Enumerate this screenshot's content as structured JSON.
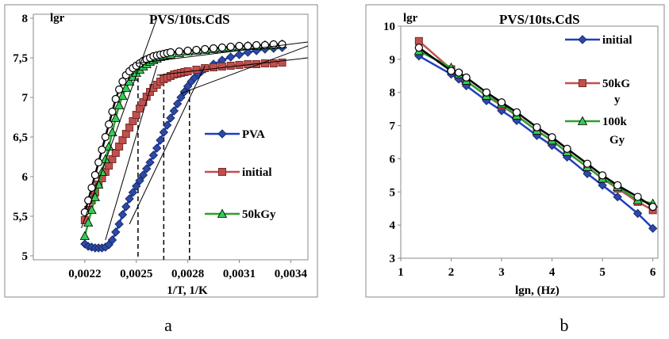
{
  "panels": [
    {
      "caption": "a",
      "chart_data": {
        "type": "line",
        "title": "PVS/10ts.CdS",
        "xlabel": "1/T, 1/K",
        "ylabel": "lgr",
        "xlim": [
          0.0019,
          0.0035
        ],
        "ylim": [
          4.95,
          8.05
        ],
        "xticks": [
          0.0022,
          0.0025,
          0.0028,
          0.0031,
          0.0034
        ],
        "xtick_labels": [
          "0,0022",
          "0,0025",
          "0,0028",
          "0,0031",
          "0,0034"
        ],
        "yticks": [
          5,
          5.5,
          6,
          6.5,
          7,
          7.5,
          8
        ],
        "ytick_labels": [
          "5",
          "5,5",
          "6",
          "6,5",
          "7",
          "7,5",
          "8"
        ],
        "legend": [
          "PVA",
          "initial",
          "50kGy"
        ],
        "grid": false,
        "series": [
          {
            "name": "PVA",
            "color": "#1f3fbf",
            "marker": "diamond",
            "marker_color": "#2b4aa8",
            "x": [
              0.0022,
              0.00222,
              0.00224,
              0.00226,
              0.00228,
              0.0023,
              0.00232,
              0.00234,
              0.00236,
              0.00238,
              0.0024,
              0.00242,
              0.00244,
              0.00246,
              0.00248,
              0.0025,
              0.00252,
              0.00254,
              0.00256,
              0.00258,
              0.0026,
              0.00262,
              0.00264,
              0.00266,
              0.00268,
              0.0027,
              0.00272,
              0.00274,
              0.00276,
              0.00278,
              0.0028,
              0.00282,
              0.00284,
              0.00286,
              0.00288,
              0.0029,
              0.00295,
              0.003,
              0.00305,
              0.0031,
              0.00315,
              0.0032,
              0.00325,
              0.0033,
              0.00335
            ],
            "y": [
              5.15,
              5.12,
              5.11,
              5.1,
              5.1,
              5.1,
              5.11,
              5.14,
              5.2,
              5.3,
              5.4,
              5.52,
              5.62,
              5.72,
              5.8,
              5.88,
              5.95,
              6.02,
              6.1,
              6.18,
              6.27,
              6.36,
              6.46,
              6.56,
              6.65,
              6.74,
              6.83,
              6.92,
              7.0,
              7.07,
              7.14,
              7.2,
              7.25,
              7.29,
              7.33,
              7.36,
              7.42,
              7.47,
              7.51,
              7.54,
              7.57,
              7.59,
              7.61,
              7.62,
              7.63
            ]
          },
          {
            "name": "initial",
            "color": "#c0504d",
            "marker": "square",
            "marker_color": "#c0504d",
            "x": [
              0.0022,
              0.00222,
              0.00224,
              0.00226,
              0.00228,
              0.0023,
              0.00232,
              0.00234,
              0.00236,
              0.00238,
              0.0024,
              0.00242,
              0.00244,
              0.00246,
              0.00248,
              0.0025,
              0.00252,
              0.00254,
              0.00256,
              0.00258,
              0.0026,
              0.00262,
              0.00264,
              0.00266,
              0.00268,
              0.0027,
              0.00272,
              0.00274,
              0.00276,
              0.00278,
              0.0028,
              0.00285,
              0.0029,
              0.00295,
              0.003,
              0.00305,
              0.0031,
              0.00315,
              0.0032,
              0.00325,
              0.0033,
              0.00335
            ],
            "y": [
              5.45,
              5.58,
              5.7,
              5.8,
              5.9,
              5.98,
              6.06,
              6.14,
              6.22,
              6.3,
              6.38,
              6.46,
              6.54,
              6.62,
              6.7,
              6.78,
              6.86,
              6.94,
              7.01,
              7.07,
              7.12,
              7.16,
              7.2,
              7.23,
              7.25,
              7.27,
              7.29,
              7.3,
              7.31,
              7.32,
              7.33,
              7.35,
              7.37,
              7.38,
              7.39,
              7.4,
              7.41,
              7.42,
              7.42,
              7.43,
              7.43,
              7.44
            ]
          },
          {
            "name": "50kGy",
            "color": "#2ca02c",
            "marker": "triangle",
            "marker_color": "#33cc55",
            "x": [
              0.0022,
              0.00222,
              0.00224,
              0.00226,
              0.00228,
              0.0023,
              0.00232,
              0.00234,
              0.00236,
              0.00238,
              0.0024,
              0.00242,
              0.00244,
              0.00246,
              0.00248,
              0.0025,
              0.00252,
              0.00254,
              0.00256,
              0.00258,
              0.0026,
              0.00262,
              0.00264,
              0.00266,
              0.00268,
              0.0027,
              0.00275,
              0.0028,
              0.00285,
              0.0029,
              0.00295,
              0.003,
              0.00305,
              0.0031,
              0.00315,
              0.0032,
              0.00325,
              0.0033,
              0.00335
            ],
            "y": [
              5.25,
              5.42,
              5.58,
              5.74,
              5.9,
              6.06,
              6.22,
              6.38,
              6.56,
              6.74,
              6.9,
              7.02,
              7.12,
              7.2,
              7.26,
              7.31,
              7.35,
              7.39,
              7.42,
              7.45,
              7.47,
              7.49,
              7.51,
              7.52,
              7.53,
              7.54,
              7.56,
              7.58,
              7.59,
              7.6,
              7.61,
              7.62,
              7.63,
              7.64,
              7.65,
              7.65,
              7.66,
              7.66,
              7.67
            ]
          },
          {
            "name": "",
            "color": "#000000",
            "marker": "circle",
            "marker_color": "#ffffff",
            "x": [
              0.0022,
              0.00222,
              0.00224,
              0.00226,
              0.00228,
              0.0023,
              0.00232,
              0.00234,
              0.00236,
              0.00238,
              0.0024,
              0.00242,
              0.00244,
              0.00246,
              0.00248,
              0.0025,
              0.00252,
              0.00254,
              0.00256,
              0.00258,
              0.0026,
              0.00262,
              0.00264,
              0.00266,
              0.00268,
              0.0027,
              0.00275,
              0.0028,
              0.00285,
              0.0029,
              0.00295,
              0.003,
              0.00305,
              0.0031,
              0.00315,
              0.0032,
              0.00325,
              0.0033,
              0.00335
            ],
            "y": [
              5.55,
              5.7,
              5.86,
              6.02,
              6.18,
              6.34,
              6.5,
              6.66,
              6.82,
              6.98,
              7.1,
              7.2,
              7.28,
              7.33,
              7.37,
              7.4,
              7.43,
              7.46,
              7.48,
              7.5,
              7.52,
              7.53,
              7.54,
              7.55,
              7.56,
              7.57,
              7.58,
              7.59,
              7.6,
              7.61,
              7.62,
              7.63,
              7.64,
              7.65,
              7.65,
              7.66,
              7.66,
              7.67,
              7.67
            ]
          }
        ],
        "tangent_lines": [
          {
            "x": [
              0.00218,
              0.00262
            ],
            "y": [
              5.35,
              8.0
            ]
          },
          {
            "x": [
              0.00232,
              0.00262
            ],
            "y": [
              5.2,
              7.4
            ]
          },
          {
            "x": [
              0.00246,
              0.0029
            ],
            "y": [
              5.4,
              7.4
            ]
          },
          {
            "x": [
              0.0025,
              0.0035
            ],
            "y": [
              7.43,
              7.7
            ]
          },
          {
            "x": [
              0.00262,
              0.0035
            ],
            "y": [
              7.28,
              7.5
            ]
          },
          {
            "x": [
              0.00276,
              0.0035
            ],
            "y": [
              7.05,
              7.65
            ]
          }
        ],
        "dashed_verticals": [
          {
            "x": 0.00251,
            "y_top": 7.45
          },
          {
            "x": 0.00266,
            "y_top": 7.3
          },
          {
            "x": 0.00281,
            "y_top": 7.1
          }
        ]
      }
    },
    {
      "caption": "b",
      "chart_data": {
        "type": "line",
        "title": "PVS/10ts.CdS",
        "xlabel": "lgn,  (Hz)",
        "ylabel": "lgr",
        "xlim": [
          1,
          6.1
        ],
        "ylim": [
          3,
          10
        ],
        "xticks": [
          1,
          2,
          3,
          4,
          5,
          6
        ],
        "xtick_labels": [
          "1",
          "2",
          "3",
          "4",
          "5",
          "6"
        ],
        "yticks": [
          3,
          4,
          5,
          6,
          7,
          8,
          9,
          10
        ],
        "ytick_labels": [
          "3",
          "4",
          "5",
          "6",
          "7",
          "8",
          "9",
          "10"
        ],
        "legend": [
          "initial",
          "50kG",
          "y",
          "100k",
          "Gy"
        ],
        "grid": false,
        "series": [
          {
            "name": "initial",
            "color": "#1f3fbf",
            "marker": "diamond",
            "marker_color": "#2b4aa8",
            "x": [
              1.36,
              2.0,
              2.15,
              2.3,
              2.7,
              3.0,
              3.3,
              3.7,
              4.0,
              4.3,
              4.7,
              5.0,
              5.3,
              5.7,
              6.0
            ],
            "y": [
              9.1,
              8.55,
              8.4,
              8.2,
              7.75,
              7.45,
              7.15,
              6.7,
              6.4,
              6.05,
              5.55,
              5.2,
              4.85,
              4.35,
              3.9
            ]
          },
          {
            "name": "50kGy",
            "color": "#c0504d",
            "marker": "square",
            "marker_color": "#c0504d",
            "x": [
              1.36,
              2.0,
              2.15,
              2.3,
              2.7,
              3.0,
              3.3,
              3.7,
              4.0,
              4.3,
              4.7,
              5.0,
              5.3,
              5.7,
              6.0
            ],
            "y": [
              9.55,
              8.7,
              8.55,
              8.35,
              7.9,
              7.6,
              7.3,
              6.85,
              6.55,
              6.2,
              5.75,
              5.4,
              5.1,
              4.7,
              4.45
            ]
          },
          {
            "name": "100kGy",
            "color": "#2ca02c",
            "marker": "triangle",
            "marker_color": "#33cc55",
            "x": [
              1.36,
              2.0,
              2.15,
              2.3,
              2.7,
              3.0,
              3.3,
              3.7,
              4.0,
              4.3,
              4.7,
              5.0,
              5.3,
              5.7,
              6.0
            ],
            "y": [
              9.25,
              8.75,
              8.55,
              8.35,
              7.9,
              7.65,
              7.3,
              6.85,
              6.55,
              6.2,
              5.75,
              5.4,
              5.15,
              4.75,
              4.65
            ]
          },
          {
            "name": "",
            "color": "#000000",
            "marker": "circle",
            "marker_color": "#ffffff",
            "x": [
              1.36,
              2.0,
              2.15,
              2.3,
              2.7,
              3.0,
              3.3,
              3.7,
              4.0,
              4.3,
              4.7,
              5.0,
              5.3,
              5.7,
              6.0
            ],
            "y": [
              9.35,
              8.65,
              8.6,
              8.45,
              8.0,
              7.7,
              7.4,
              6.95,
              6.65,
              6.3,
              5.85,
              5.5,
              5.2,
              4.85,
              4.55
            ]
          }
        ]
      }
    }
  ]
}
